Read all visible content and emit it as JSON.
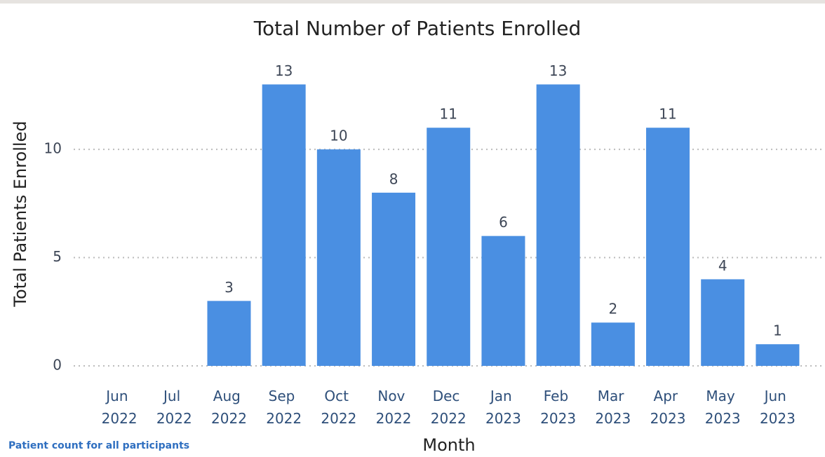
{
  "chart_data": {
    "type": "bar",
    "title": "Total Number of Patients Enrolled",
    "x_label": "Month",
    "y_label": "Total Patients Enrolled",
    "footnote": "Patient count for all participants",
    "categories": [
      "Jun 2022",
      "Jul 2022",
      "Aug 2022",
      "Sep 2022",
      "Oct 2022",
      "Nov 2022",
      "Dec 2022",
      "Jan 2023",
      "Feb 2023",
      "Mar 2023",
      "Apr 2023",
      "May 2023",
      "Jun 2023"
    ],
    "values": [
      null,
      null,
      3,
      13,
      10,
      8,
      11,
      6,
      13,
      2,
      11,
      4,
      1
    ],
    "color": "#4a8fe2",
    "ylim": [
      0,
      13.5
    ],
    "yticks": [
      0,
      5,
      10
    ],
    "grid": true
  }
}
